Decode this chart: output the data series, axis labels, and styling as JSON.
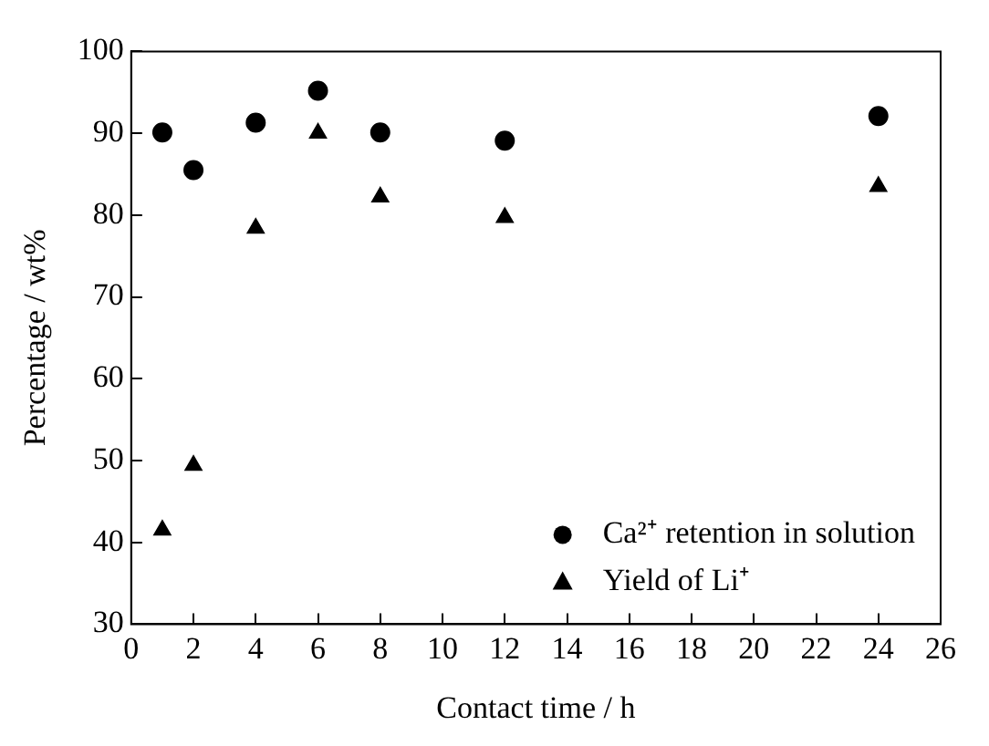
{
  "chart_data": {
    "type": "scatter",
    "xlabel": "Contact time / h",
    "ylabel": "Percentage / wt%",
    "x": [
      1,
      2,
      4,
      6,
      8,
      12,
      24
    ],
    "series": [
      {
        "name": "Ca²⁺ retention in solution",
        "color": "#000000",
        "marker": "circle",
        "values": [
          90.1,
          85.5,
          91.3,
          95.2,
          90.1,
          89.1,
          92.1
        ]
      },
      {
        "name": "Yield of Li⁺",
        "color": "#000000",
        "marker": "triangle",
        "values": [
          41.5,
          49.4,
          78.4,
          90,
          82.2,
          79.7,
          83.5
        ]
      }
    ],
    "xlim": [
      0,
      26
    ],
    "xticks": [
      0,
      2,
      4,
      6,
      8,
      10,
      12,
      14,
      16,
      18,
      20,
      22,
      24,
      26
    ],
    "ylim": [
      30,
      100
    ],
    "yticks": [
      30,
      40,
      50,
      60,
      70,
      80,
      90,
      100
    ],
    "legend": "bottom right"
  }
}
